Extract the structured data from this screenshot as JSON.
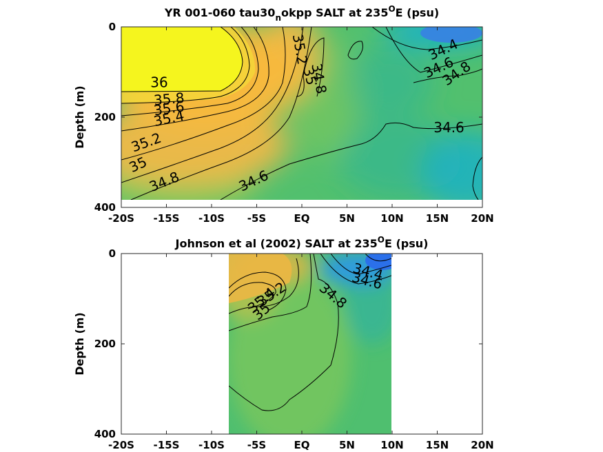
{
  "chart_data": [
    {
      "type": "heatmap",
      "title_parts": [
        "YR 001-060 tau30",
        "n",
        "okpp SALT at 235",
        "O",
        "E (psu)"
      ],
      "ylabel": "Depth (m)",
      "xlim": [
        -20,
        20
      ],
      "ylim": [
        0,
        400
      ],
      "y_reversed": true,
      "x_ticks": [
        -20,
        -15,
        -10,
        -5,
        0,
        5,
        10,
        15,
        20
      ],
      "x_tick_labels": [
        "-20S",
        "-15S",
        "-10S",
        "-5S",
        "EQ",
        "5N",
        "10N",
        "15N",
        "20N"
      ],
      "y_ticks": [
        0,
        200,
        400
      ],
      "y_tick_labels": [
        "0",
        "200",
        "400"
      ],
      "data_extent": {
        "x": [
          -20,
          20
        ],
        "depth": [
          0,
          380
        ]
      },
      "colors": {
        "36.0": "#f5f51e",
        "35.6": "#f7b93e",
        "35.2": "#e9b94a",
        "35.0": "#b7bf4f",
        "34.8": "#84c85a",
        "34.6": "#52c06e",
        "34.4": "#2cb497",
        "34.2": "#19b2c8",
        "34.0": "#3a7ee6"
      },
      "contour_labels": [
        {
          "text": "36",
          "x": -15.8,
          "depth": 125,
          "angle": 0
        },
        {
          "text": "35.8",
          "x": -14.7,
          "depth": 162,
          "angle": -5
        },
        {
          "text": "35.6",
          "x": -14.7,
          "depth": 183,
          "angle": -8
        },
        {
          "text": "35.4",
          "x": -14.7,
          "depth": 205,
          "angle": -12
        },
        {
          "text": "35.2",
          "x": -17.2,
          "depth": 258,
          "angle": -20
        },
        {
          "text": "35",
          "x": -18.1,
          "depth": 307,
          "angle": -25
        },
        {
          "text": "34.8",
          "x": -15.2,
          "depth": 345,
          "angle": -22
        },
        {
          "text": "34.6",
          "x": -5.3,
          "depth": 343,
          "angle": -25
        },
        {
          "text": "35.2",
          "x": -0.3,
          "depth": 50,
          "angle": 80
        },
        {
          "text": "35",
          "x": 0.8,
          "depth": 110,
          "angle": 75
        },
        {
          "text": "34.8",
          "x": 1.8,
          "depth": 115,
          "angle": 80
        },
        {
          "text": "34.4",
          "x": 15.7,
          "depth": 52,
          "angle": -25
        },
        {
          "text": "34.6",
          "x": 15.2,
          "depth": 92,
          "angle": -25
        },
        {
          "text": "34.8",
          "x": 17.2,
          "depth": 105,
          "angle": -35
        },
        {
          "text": "34.6",
          "x": 16.3,
          "depth": 225,
          "angle": 0
        }
      ]
    },
    {
      "type": "heatmap",
      "title_parts": [
        "Johnson et al (2002) SALT at 235",
        "O",
        "E (psu)"
      ],
      "ylabel": "Depth (m)",
      "xlim": [
        -20,
        20
      ],
      "ylim": [
        0,
        400
      ],
      "y_reversed": true,
      "x_ticks": [
        -20,
        -15,
        -10,
        -5,
        0,
        5,
        10,
        15,
        20
      ],
      "x_tick_labels": [
        "-20S",
        "-15S",
        "-10S",
        "-5S",
        "EQ",
        "5N",
        "10N",
        "15N",
        "20N"
      ],
      "y_ticks": [
        0,
        200,
        400
      ],
      "y_tick_labels": [
        "0",
        "200",
        "400"
      ],
      "data_extent": {
        "x": [
          -8,
          10
        ],
        "depth": [
          0,
          400
        ]
      },
      "colors": {
        "35.6": "#ebb744",
        "35.2": "#c9b84c",
        "35.0": "#a9c151",
        "34.8": "#7cc75b",
        "34.6": "#4fbf6f",
        "34.4": "#2bb0a6",
        "34.2": "#2d9bdc",
        "34.0": "#2b70ea"
      },
      "contour_labels": [
        {
          "text": "35.4",
          "x": -4.4,
          "depth": 105,
          "angle": -40
        },
        {
          "text": "35.2",
          "x": -3.3,
          "depth": 92,
          "angle": -35
        },
        {
          "text": "35",
          "x": -4.4,
          "depth": 130,
          "angle": -40
        },
        {
          "text": "34.8",
          "x": 3.4,
          "depth": 95,
          "angle": 40
        },
        {
          "text": "34.4",
          "x": 7.3,
          "depth": 42,
          "angle": 15
        },
        {
          "text": "34.6",
          "x": 7.2,
          "depth": 62,
          "angle": 15
        }
      ]
    }
  ]
}
